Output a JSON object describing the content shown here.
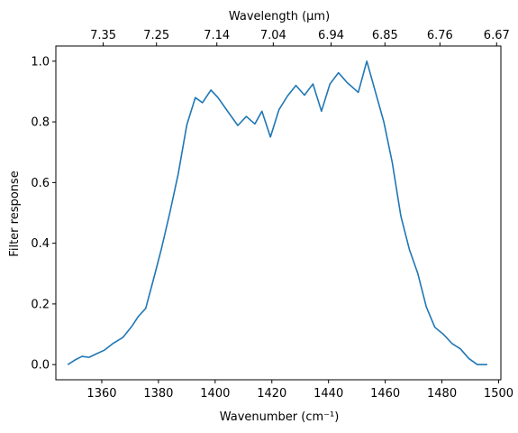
{
  "chart_data": {
    "type": "line",
    "xlabel": "Wavenumber (cm⁻¹)",
    "ylabel": "Filter response",
    "top_xlabel": "Wavelength (μm)",
    "xlim": [
      1343.8,
      1500.8
    ],
    "ylim": [
      -0.05,
      1.05
    ],
    "x_ticks": [
      1360,
      1380,
      1400,
      1420,
      1440,
      1460,
      1480,
      1500
    ],
    "y_ticks": [
      0.0,
      0.2,
      0.4,
      0.6,
      0.8,
      1.0
    ],
    "top_ticks": [
      "7.35",
      "7.25",
      "7.14",
      "7.04",
      "6.94",
      "6.85",
      "6.76",
      "6.67"
    ],
    "top_tick_wavenumbers": [
      1360.5,
      1379.3,
      1400.6,
      1420.5,
      1440.9,
      1459.9,
      1479.3,
      1499.3
    ],
    "grid": false,
    "line_color": "#1f77b4",
    "series": [
      {
        "x": [
          1348,
          1350.5,
          1353,
          1355.5,
          1358,
          1361,
          1364,
          1367.5,
          1370.5,
          1373,
          1375.5,
          1378.5,
          1381,
          1384,
          1387,
          1390,
          1393,
          1395.5,
          1398.5,
          1401,
          1404,
          1408,
          1411,
          1414,
          1416.5,
          1419.5,
          1422.5,
          1425.5,
          1428.5,
          1431.5,
          1434.5,
          1437.5,
          1440.5,
          1443.5,
          1446.5,
          1450.5,
          1453.5,
          1456.5,
          1459.5,
          1462.5,
          1465.5,
          1468.5,
          1471.5,
          1474.5,
          1477.5,
          1480.5,
          1483.5,
          1486.5,
          1489.5,
          1492.5,
          1496
        ],
        "y": [
          0.0,
          0.015,
          0.027,
          0.024,
          0.035,
          0.048,
          0.07,
          0.09,
          0.125,
          0.16,
          0.185,
          0.29,
          0.38,
          0.5,
          0.63,
          0.79,
          0.88,
          0.863,
          0.905,
          0.88,
          0.84,
          0.788,
          0.818,
          0.793,
          0.835,
          0.75,
          0.84,
          0.885,
          0.92,
          0.888,
          0.925,
          0.835,
          0.925,
          0.962,
          0.93,
          0.897,
          1.0,
          0.9,
          0.8,
          0.665,
          0.49,
          0.38,
          0.3,
          0.19,
          0.123,
          0.1,
          0.07,
          0.052,
          0.02,
          0.0,
          0.0
        ]
      }
    ]
  }
}
